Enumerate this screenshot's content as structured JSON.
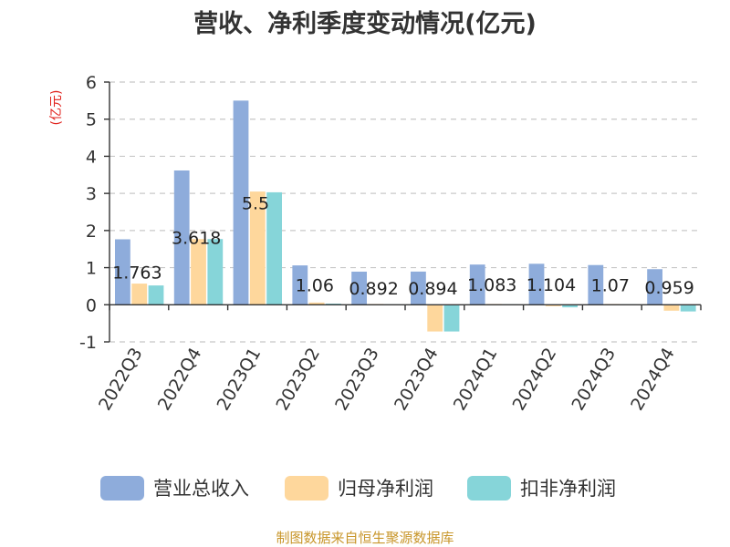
{
  "title": "营收、净利季度变动情况(亿元)",
  "unit_label": "(亿元)",
  "source": "制图数据来自恒生聚源数据库",
  "colors": {
    "revenue": "#8eacdb",
    "parent_profit": "#fed79c",
    "deducted_profit": "#86d5d9"
  },
  "chart_data": {
    "type": "bar",
    "title": "营收、净利季度变动情况(亿元)",
    "ylabel": "(亿元)",
    "ylim": [
      -1,
      6
    ],
    "yticks": [
      -1,
      0,
      1,
      2,
      3,
      4,
      5,
      6
    ],
    "grid": true,
    "legend_position": "bottom",
    "categories": [
      "2022Q3",
      "2022Q4",
      "2023Q1",
      "2023Q2",
      "2023Q3",
      "2023Q4",
      "2024Q1",
      "2024Q2",
      "2024Q3",
      "2024Q4"
    ],
    "series": [
      {
        "name": "营业总收入",
        "values": [
          1.763,
          3.618,
          5.5,
          1.06,
          0.892,
          0.894,
          1.083,
          1.104,
          1.07,
          0.959
        ]
      },
      {
        "name": "归母净利润",
        "values": [
          0.57,
          1.77,
          3.05,
          0.06,
          0.02,
          -0.72,
          0.02,
          -0.04,
          0.02,
          -0.16
        ]
      },
      {
        "name": "扣非净利润",
        "values": [
          0.52,
          1.77,
          3.03,
          0.03,
          0.01,
          -0.72,
          0.01,
          -0.07,
          0.01,
          -0.18
        ]
      }
    ],
    "data_labels": [
      "1.763",
      "3.618",
      "5.5",
      "1.06",
      "0.892",
      "0.894",
      "1.083",
      "1.104",
      "1.07",
      "0.959"
    ]
  }
}
